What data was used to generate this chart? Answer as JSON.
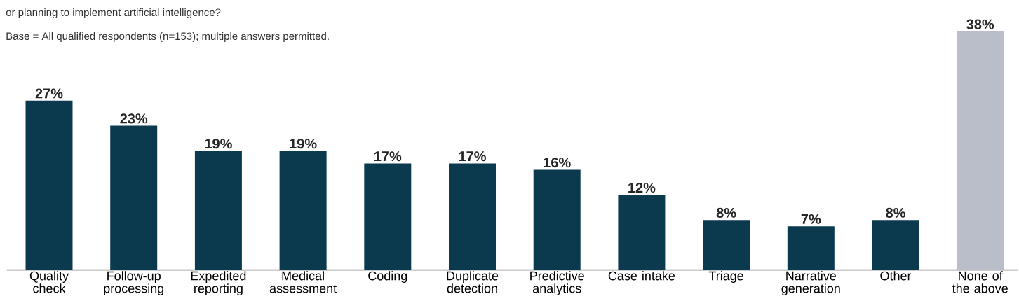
{
  "chart_data": {
    "type": "bar",
    "annotations": [
      "or planning to implement artificial intelligence?",
      "Base = All qualified respondents (n=153); multiple answers permitted."
    ],
    "categories": [
      "Quality check",
      "Follow-up processing",
      "Expedited reporting",
      "Medical assessment",
      "Coding",
      "Duplicate detection",
      "Predictive analytics",
      "Case intake",
      "Triage",
      "Narrative generation",
      "Other",
      "None of the above"
    ],
    "values": [
      27,
      23,
      19,
      19,
      17,
      17,
      16,
      12,
      8,
      7,
      8,
      38
    ],
    "value_labels": [
      "27%",
      "23%",
      "19%",
      "19%",
      "17%",
      "17%",
      "16%",
      "12%",
      "8%",
      "7%",
      "8%",
      "38%"
    ],
    "colors": [
      "#0b3a4f",
      "#0b3a4f",
      "#0b3a4f",
      "#0b3a4f",
      "#0b3a4f",
      "#0b3a4f",
      "#0b3a4f",
      "#0b3a4f",
      "#0b3a4f",
      "#0b3a4f",
      "#0b3a4f",
      "#b9bec8"
    ]
  }
}
